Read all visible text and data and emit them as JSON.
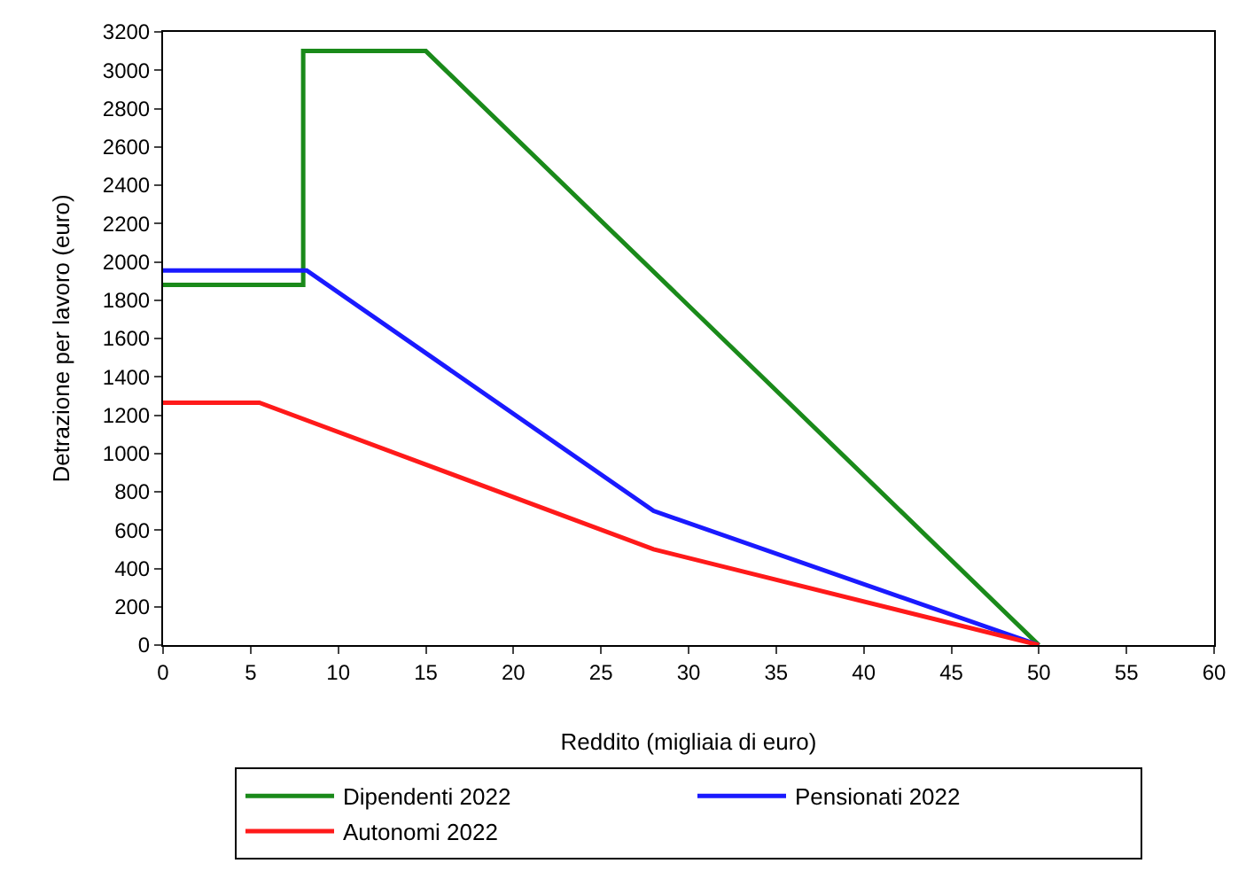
{
  "chart_data": {
    "type": "line",
    "xlabel": "Reddito (migliaia di euro)",
    "ylabel": "Detrazione per lavoro (euro)",
    "xlim": [
      0,
      60
    ],
    "xticks": [
      0,
      5,
      10,
      15,
      20,
      25,
      30,
      35,
      40,
      45,
      50,
      55,
      60
    ],
    "ylim": [
      0,
      3200
    ],
    "yticks": [
      0,
      200,
      400,
      600,
      800,
      1000,
      1200,
      1400,
      1600,
      1800,
      2000,
      2200,
      2400,
      2600,
      2800,
      3000,
      3200
    ],
    "legend": "bottom",
    "marker": "none",
    "line_style": "solid",
    "series": [
      {
        "name": "Dipendenti 2022",
        "color": "#1a8a1a",
        "x": [
          0,
          8,
          8,
          15,
          50
        ],
        "values": [
          1880,
          1880,
          3100,
          3100,
          0
        ]
      },
      {
        "name": "Pensionati 2022",
        "color": "#1a1aff",
        "x": [
          0,
          8.2,
          28,
          50
        ],
        "values": [
          1955,
          1955,
          700,
          0
        ]
      },
      {
        "name": "Autonomi 2022",
        "color": "#ff1a1a",
        "x": [
          0,
          5.5,
          28,
          50
        ],
        "values": [
          1265,
          1265,
          500,
          0
        ]
      }
    ]
  }
}
